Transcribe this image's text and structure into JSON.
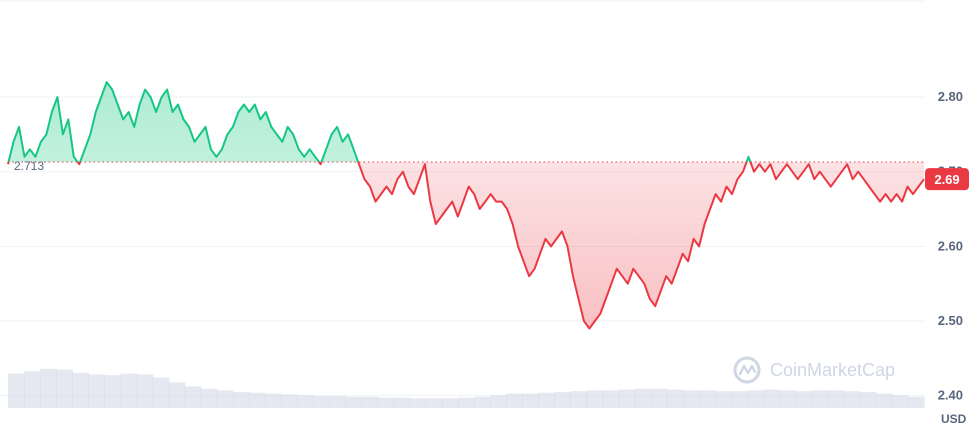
{
  "chart_data": {
    "type": "area",
    "ylim": [
      2.35,
      2.93
    ],
    "y_ticks": [
      "2.80",
      "2.70",
      "2.60",
      "2.50",
      "2.40"
    ],
    "y_tick_values": [
      2.8,
      2.7,
      2.6,
      2.5,
      2.4
    ],
    "baseline_value": 2.713,
    "baseline_label": "2.713",
    "current_value": 2.69,
    "current_label": "2.69",
    "unit_label": "USD",
    "grid": true,
    "colors": {
      "above": "#16c784",
      "below": "#ea3943",
      "volume": "#cfd6e4",
      "grid": "#eff2f5"
    },
    "series": [
      {
        "values": [
          2.71,
          2.74,
          2.76,
          2.72,
          2.73,
          2.72,
          2.74,
          2.75,
          2.78,
          2.8,
          2.75,
          2.77,
          2.72,
          2.71,
          2.73,
          2.75,
          2.78,
          2.8,
          2.82,
          2.81,
          2.79,
          2.77,
          2.78,
          2.76,
          2.79,
          2.81,
          2.8,
          2.78,
          2.8,
          2.81,
          2.78,
          2.79,
          2.77,
          2.76,
          2.74,
          2.75,
          2.76,
          2.73,
          2.72,
          2.73,
          2.75,
          2.76,
          2.78,
          2.79,
          2.78,
          2.79,
          2.77,
          2.78,
          2.76,
          2.75,
          2.74,
          2.76,
          2.75,
          2.73,
          2.72,
          2.73,
          2.72,
          2.71,
          2.73,
          2.75,
          2.76,
          2.74,
          2.75,
          2.73,
          2.71,
          2.69,
          2.68,
          2.66,
          2.67,
          2.68,
          2.67,
          2.69,
          2.7,
          2.68,
          2.67,
          2.69,
          2.71,
          2.66,
          2.63,
          2.64,
          2.65,
          2.66,
          2.64,
          2.66,
          2.68,
          2.67,
          2.65,
          2.66,
          2.67,
          2.66,
          2.66,
          2.65,
          2.63,
          2.6,
          2.58,
          2.56,
          2.57,
          2.59,
          2.61,
          2.6,
          2.61,
          2.62,
          2.6,
          2.56,
          2.53,
          2.5,
          2.49,
          2.5,
          2.51,
          2.53,
          2.55,
          2.57,
          2.56,
          2.55,
          2.57,
          2.56,
          2.55,
          2.53,
          2.52,
          2.54,
          2.56,
          2.55,
          2.57,
          2.59,
          2.58,
          2.61,
          2.6,
          2.63,
          2.65,
          2.67,
          2.66,
          2.68,
          2.67,
          2.69,
          2.7,
          2.72,
          2.7,
          2.71,
          2.7,
          2.71,
          2.69,
          2.7,
          2.71,
          2.7,
          2.69,
          2.7,
          2.71,
          2.69,
          2.7,
          2.69,
          2.68,
          2.69,
          2.7,
          2.71,
          2.69,
          2.7,
          2.69,
          2.68,
          2.67,
          2.66,
          2.67,
          2.66,
          2.67,
          2.66,
          2.68,
          2.67,
          2.68,
          2.69
        ]
      }
    ],
    "volume": [
      0.43,
      0.46,
      0.49,
      0.48,
      0.44,
      0.42,
      0.41,
      0.43,
      0.42,
      0.38,
      0.32,
      0.27,
      0.24,
      0.22,
      0.2,
      0.19,
      0.18,
      0.17,
      0.16,
      0.15,
      0.15,
      0.14,
      0.14,
      0.13,
      0.13,
      0.12,
      0.12,
      0.12,
      0.13,
      0.14,
      0.16,
      0.18,
      0.18,
      0.19,
      0.2,
      0.21,
      0.22,
      0.22,
      0.23,
      0.24,
      0.24,
      0.23,
      0.22,
      0.22,
      0.21,
      0.21,
      0.22,
      0.23,
      0.22,
      0.21,
      0.22,
      0.22,
      0.21,
      0.2,
      0.18,
      0.16,
      0.14
    ]
  },
  "watermark": {
    "text": "CoinMarketCap"
  }
}
